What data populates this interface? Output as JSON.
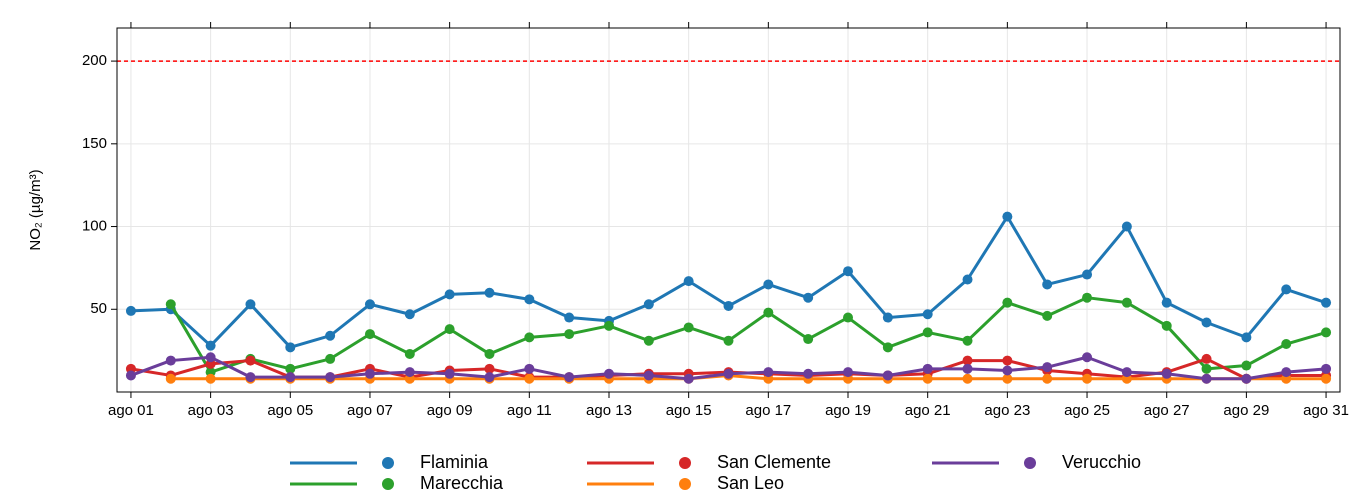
{
  "chart_data": {
    "type": "line",
    "y_label": "NO₂ (µg/m³)",
    "categories": [
      "ago 01",
      null,
      "ago 03",
      null,
      "ago 05",
      null,
      "ago 07",
      null,
      "ago 09",
      null,
      "ago 11",
      null,
      "ago 13",
      null,
      "ago 15",
      null,
      "ago 17",
      null,
      "ago 19",
      null,
      "ago 21",
      null,
      "ago 23",
      null,
      "ago 25",
      null,
      "ago 27",
      null,
      "ago 29",
      null,
      "ago 31"
    ],
    "series": [
      {
        "name": "Flaminia",
        "color": "#1f77b4",
        "values": [
          49,
          50,
          28,
          53,
          27,
          34,
          53,
          47,
          59,
          60,
          56,
          45,
          43,
          53,
          67,
          52,
          65,
          57,
          73,
          45,
          47,
          68,
          106,
          65,
          71,
          100,
          54,
          42,
          33,
          62,
          54
        ]
      },
      {
        "name": "Marecchia",
        "color": "#2ca02c",
        "values": [
          null,
          53,
          12,
          20,
          14,
          20,
          35,
          23,
          38,
          23,
          33,
          35,
          40,
          31,
          39,
          31,
          48,
          32,
          45,
          27,
          36,
          31,
          54,
          46,
          57,
          54,
          40,
          14,
          16,
          29,
          36
        ]
      },
      {
        "name": "San Clemente",
        "color": "#d62728",
        "values": [
          14,
          10,
          17,
          19,
          9,
          9,
          14,
          9,
          13,
          14,
          9,
          9,
          10,
          11,
          11,
          12,
          11,
          10,
          11,
          10,
          11,
          19,
          19,
          13,
          11,
          9,
          12,
          20,
          8,
          10,
          10
        ]
      },
      {
        "name": "San Leo",
        "color": "#ff7f0e",
        "values": [
          null,
          8,
          8,
          8,
          8,
          8,
          8,
          8,
          8,
          8,
          8,
          8,
          8,
          8,
          8,
          10,
          8,
          8,
          8,
          8,
          8,
          8,
          8,
          8,
          8,
          8,
          8,
          8,
          8,
          8,
          8
        ]
      },
      {
        "name": "Verucchio",
        "color": "#6a3d9a",
        "values": [
          10,
          19,
          21,
          9,
          9,
          9,
          11,
          12,
          11,
          9,
          14,
          9,
          11,
          10,
          8,
          11,
          12,
          11,
          12,
          10,
          14,
          14,
          13,
          15,
          21,
          12,
          11,
          8,
          8,
          12,
          14
        ]
      }
    ],
    "ylim": [
      0,
      220
    ],
    "yticks": [
      50,
      100,
      150,
      200
    ],
    "grid": true,
    "threshold": {
      "value": 200,
      "color": "#ff0000"
    },
    "legend": "bottom"
  }
}
